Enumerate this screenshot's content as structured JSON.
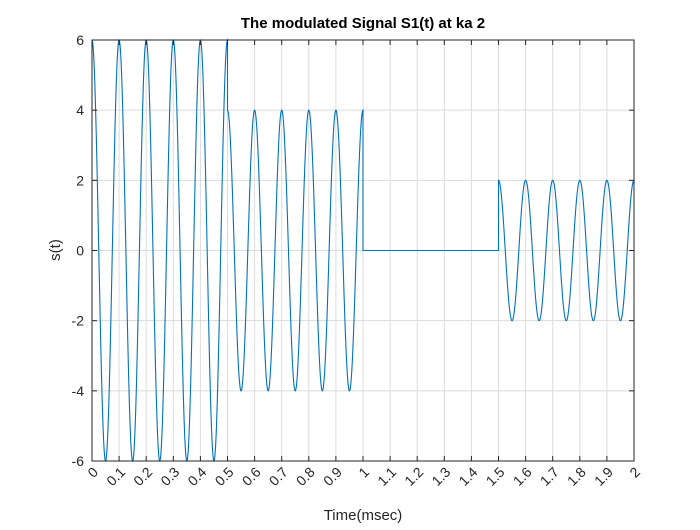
{
  "chart_data": {
    "type": "line",
    "title": "The modulated Signal S1(t) at ka 2",
    "xlabel": "Time(msec)",
    "ylabel": "s(t)",
    "xlim": [
      0,
      2
    ],
    "ylim": [
      -6,
      6
    ],
    "grid": true,
    "xticks": [
      "0",
      "0.1",
      "0.2",
      "0.3",
      "0.4",
      "0.5",
      "0.6",
      "0.7",
      "0.8",
      "0.9",
      "1",
      "1.1",
      "1.2",
      "1.3",
      "1.4",
      "1.5",
      "1.6",
      "1.7",
      "1.8",
      "1.9",
      "2"
    ],
    "yticks": [
      "-6",
      "-4",
      "-2",
      "0",
      "2",
      "4",
      "6"
    ],
    "series": [
      {
        "color": "#0072bd",
        "carrier_frequency_per_msec": 10,
        "segments": [
          {
            "t_start": 0.0,
            "t_end": 0.5,
            "amplitude": 6
          },
          {
            "t_start": 0.5,
            "t_end": 1.0,
            "amplitude": 4
          },
          {
            "t_start": 1.0,
            "t_end": 1.5,
            "amplitude": 0
          },
          {
            "t_start": 1.5,
            "t_end": 2.0,
            "amplitude": 2
          }
        ]
      }
    ]
  }
}
